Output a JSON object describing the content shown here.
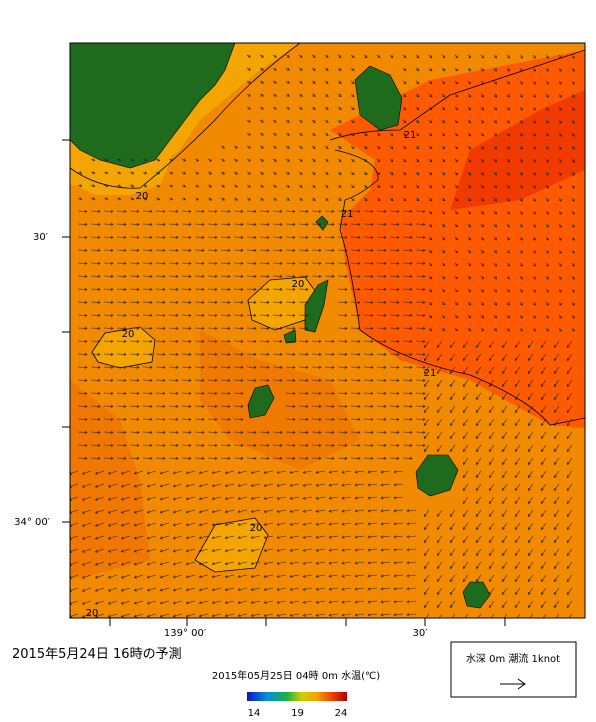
{
  "map": {
    "contour_labels": [
      "20",
      "21",
      "21",
      "20",
      "20",
      "21",
      "20",
      "20"
    ],
    "lat_labels": [
      "30′",
      "34° 00′"
    ],
    "lon_labels": [
      "139° 00′",
      "30′"
    ]
  },
  "title": "2015年5月24日 16時の予測",
  "layer_label": "2015年05月25日 04時 0m 水温(℃)",
  "colorbar": {
    "ticks": [
      14,
      19,
      24
    ]
  },
  "legend": {
    "label": "水深 0m 潮流 1knot"
  }
}
